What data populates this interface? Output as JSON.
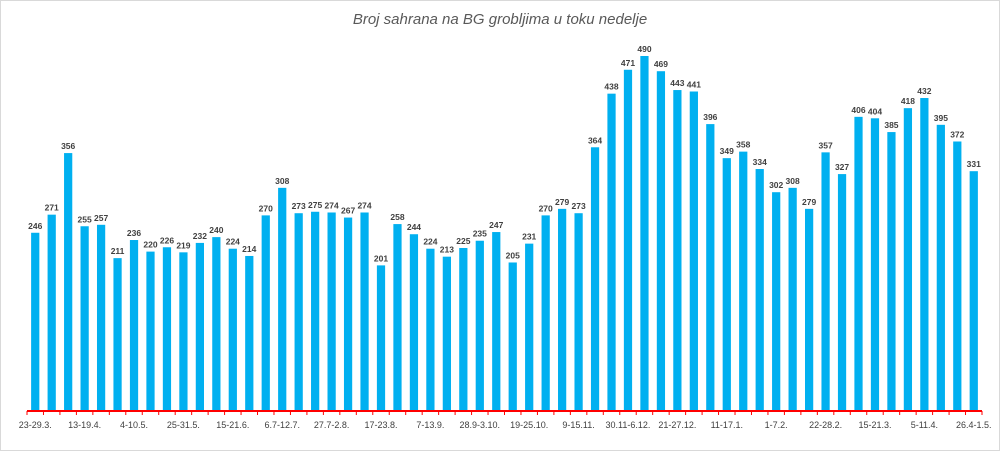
{
  "chart_data": {
    "type": "bar",
    "title": "Broj sahrana na BG grobljima u toku nedelje",
    "xlabel": "",
    "ylabel": "",
    "ylim": [
      0,
      500
    ],
    "grid": false,
    "legend": "none",
    "color": "#00b0f0",
    "axis_color": "#ff0000",
    "values": [
      246,
      271,
      356,
      255,
      257,
      211,
      236,
      220,
      226,
      219,
      232,
      240,
      224,
      214,
      270,
      308,
      273,
      275,
      274,
      267,
      274,
      201,
      258,
      244,
      224,
      213,
      225,
      235,
      247,
      205,
      231,
      270,
      279,
      273,
      364,
      438,
      471,
      490,
      469,
      443,
      441,
      396,
      349,
      358,
      334,
      302,
      308,
      279,
      357,
      327,
      406,
      404,
      385,
      418,
      432,
      395,
      372,
      331
    ],
    "tick_labels": [
      {
        "index": 0,
        "label": "23-29.3."
      },
      {
        "index": 3,
        "label": "13-19.4."
      },
      {
        "index": 6,
        "label": "4-10.5."
      },
      {
        "index": 9,
        "label": "25-31.5."
      },
      {
        "index": 12,
        "label": "15-21.6."
      },
      {
        "index": 15,
        "label": "6.7-12.7."
      },
      {
        "index": 18,
        "label": "27.7-2.8."
      },
      {
        "index": 21,
        "label": "17-23.8."
      },
      {
        "index": 24,
        "label": "7-13.9."
      },
      {
        "index": 27,
        "label": "28.9-3.10."
      },
      {
        "index": 30,
        "label": "19-25.10."
      },
      {
        "index": 33,
        "label": "9-15.11."
      },
      {
        "index": 36,
        "label": "30.11-6.12."
      },
      {
        "index": 39,
        "label": "21-27.12."
      },
      {
        "index": 42,
        "label": "11-17.1."
      },
      {
        "index": 45,
        "label": "1-7.2."
      },
      {
        "index": 48,
        "label": "22-28.2."
      },
      {
        "index": 51,
        "label": "15-21.3."
      },
      {
        "index": 54,
        "label": "5-11.4."
      },
      {
        "index": 57,
        "label": "26.4-1.5."
      }
    ]
  }
}
